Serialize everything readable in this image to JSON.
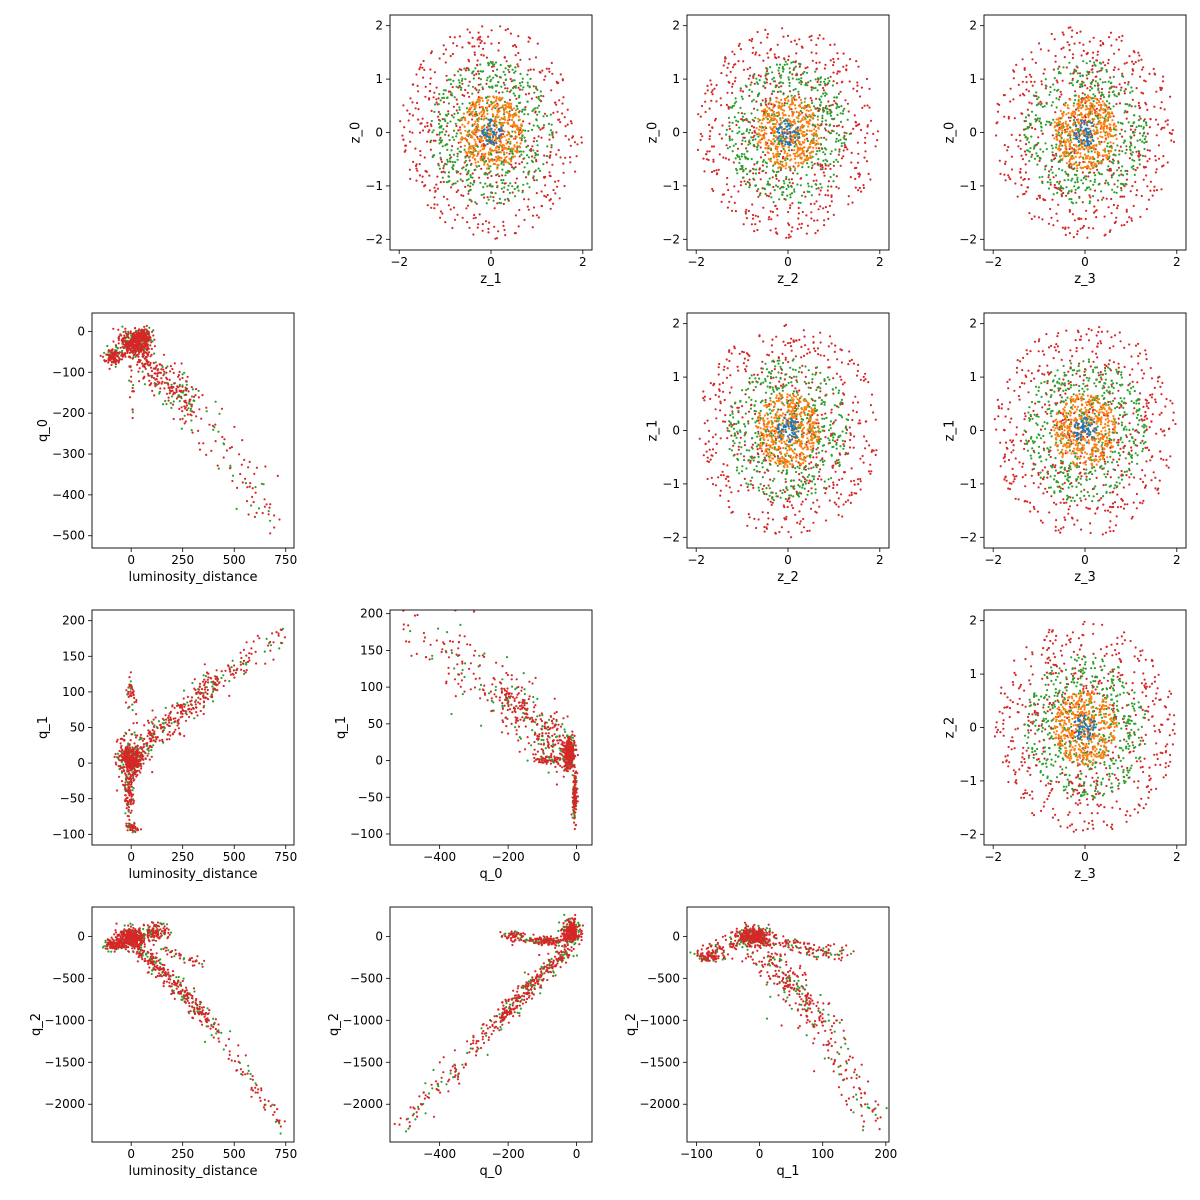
{
  "figure": {
    "kind": "scatter-matrix",
    "layout": "4x4 lower-left panels (physical params) and upper-right panels (latent z)"
  },
  "colors": {
    "series": [
      "#1f77b4",
      "#ff7f0e",
      "#2ca02c",
      "#d62728"
    ],
    "axes": "#000000"
  },
  "chart_data": [
    {
      "type": "scatter",
      "cell": [
        0,
        1
      ],
      "xlabel": "z_1",
      "ylabel": "z_0",
      "xlim": [
        -2.2,
        2.2
      ],
      "ylim": [
        -2.2,
        2.2
      ],
      "xticks": [
        -2,
        0,
        2
      ],
      "yticks": [
        -2,
        -1,
        0,
        1,
        2
      ],
      "distribution": "rings",
      "rings": [
        0.25,
        0.7,
        1.35,
        2.0
      ]
    },
    {
      "type": "scatter",
      "cell": [
        0,
        2
      ],
      "xlabel": "z_2",
      "ylabel": "z_0",
      "xlim": [
        -2.2,
        2.2
      ],
      "ylim": [
        -2.2,
        2.2
      ],
      "xticks": [
        -2,
        0,
        2
      ],
      "yticks": [
        -2,
        -1,
        0,
        1,
        2
      ],
      "distribution": "rings",
      "rings": [
        0.25,
        0.7,
        1.35,
        2.0
      ]
    },
    {
      "type": "scatter",
      "cell": [
        0,
        3
      ],
      "xlabel": "z_3",
      "ylabel": "z_0",
      "xlim": [
        -2.2,
        2.2
      ],
      "ylim": [
        -2.2,
        2.2
      ],
      "xticks": [
        -2,
        0,
        2
      ],
      "yticks": [
        -2,
        -1,
        0,
        1,
        2
      ],
      "distribution": "rings",
      "rings": [
        0.25,
        0.7,
        1.35,
        2.0
      ]
    },
    {
      "type": "scatter",
      "cell": [
        1,
        2
      ],
      "xlabel": "z_2",
      "ylabel": "z_1",
      "xlim": [
        -2.2,
        2.2
      ],
      "ylim": [
        -2.2,
        2.2
      ],
      "xticks": [
        -2,
        0,
        2
      ],
      "yticks": [
        -2,
        -1,
        0,
        1,
        2
      ],
      "distribution": "rings",
      "rings": [
        0.25,
        0.7,
        1.35,
        2.0
      ]
    },
    {
      "type": "scatter",
      "cell": [
        1,
        3
      ],
      "xlabel": "z_3",
      "ylabel": "z_1",
      "xlim": [
        -2.2,
        2.2
      ],
      "ylim": [
        -2.2,
        2.2
      ],
      "xticks": [
        -2,
        0,
        2
      ],
      "yticks": [
        -2,
        -1,
        0,
        1,
        2
      ],
      "distribution": "rings",
      "rings": [
        0.25,
        0.7,
        1.35,
        2.0
      ]
    },
    {
      "type": "scatter",
      "cell": [
        2,
        3
      ],
      "xlabel": "z_3",
      "ylabel": "z_2",
      "xlim": [
        -2.2,
        2.2
      ],
      "ylim": [
        -2.2,
        2.2
      ],
      "xticks": [
        -2,
        0,
        2
      ],
      "yticks": [
        -2,
        -1,
        0,
        1,
        2
      ],
      "distribution": "rings",
      "rings": [
        0.25,
        0.7,
        1.35,
        2.0
      ]
    },
    {
      "type": "scatter",
      "cell": [
        1,
        0
      ],
      "xlabel": "luminosity_distance",
      "ylabel": "q_0",
      "xlim": [
        -190,
        790
      ],
      "ylim": [
        -530,
        45
      ],
      "xticks": [
        0,
        250,
        500,
        750
      ],
      "yticks": [
        -500,
        -400,
        -300,
        -200,
        -100,
        0
      ],
      "distribution": "structured",
      "clusters": [
        {
          "center": [
            20,
            -30
          ],
          "spread": [
            55,
            28
          ],
          "n": 420
        },
        {
          "center": [
            -90,
            -60
          ],
          "spread": [
            35,
            15
          ],
          "n": 120
        },
        {
          "center": [
            60,
            -10
          ],
          "spread": [
            30,
            12
          ],
          "n": 120
        }
      ],
      "arms": [
        {
          "from": [
            30,
            -50
          ],
          "to": [
            310,
            -190
          ],
          "width": 15,
          "n": 260
        },
        {
          "from": [
            300,
            -180
          ],
          "to": [
            720,
            -470
          ],
          "width": 22,
          "n": 90
        },
        {
          "from": [
            0,
            -60
          ],
          "to": [
            10,
            -220
          ],
          "width": 12,
          "n": 20
        }
      ]
    },
    {
      "type": "scatter",
      "cell": [
        2,
        0
      ],
      "xlabel": "luminosity_distance",
      "ylabel": "q_1",
      "xlim": [
        -190,
        790
      ],
      "ylim": [
        -115,
        215
      ],
      "xticks": [
        0,
        250,
        500,
        750
      ],
      "yticks": [
        -100,
        -50,
        0,
        50,
        100,
        150,
        200
      ],
      "distribution": "structured",
      "clusters": [
        {
          "center": [
            0,
            5
          ],
          "spread": [
            45,
            18
          ],
          "n": 380
        },
        {
          "center": [
            -10,
            -40
          ],
          "spread": [
            20,
            25
          ],
          "n": 110
        },
        {
          "center": [
            0,
            95
          ],
          "spread": [
            15,
            20
          ],
          "n": 40
        },
        {
          "center": [
            0,
            -90
          ],
          "spread": [
            25,
            6
          ],
          "n": 40
        }
      ],
      "arms": [
        {
          "from": [
            40,
            20
          ],
          "to": [
            420,
            115
          ],
          "width": 6,
          "n": 300
        },
        {
          "from": [
            400,
            110
          ],
          "to": [
            750,
            185
          ],
          "width": 5,
          "n": 80
        },
        {
          "from": [
            -80,
            0
          ],
          "to": [
            40,
            20
          ],
          "width": 10,
          "n": 60
        }
      ]
    },
    {
      "type": "scatter",
      "cell": [
        2,
        1
      ],
      "xlabel": "q_0",
      "ylabel": "q_1",
      "xlim": [
        -545,
        45
      ],
      "ylim": [
        -115,
        205
      ],
      "xticks": [
        -400,
        -200,
        0
      ],
      "yticks": [
        -100,
        -50,
        0,
        50,
        100,
        150,
        200
      ],
      "distribution": "structured",
      "clusters": [
        {
          "center": [
            -20,
            10
          ],
          "spread": [
            15,
            18
          ],
          "n": 320
        },
        {
          "center": [
            -5,
            -50
          ],
          "spread": [
            5,
            25
          ],
          "n": 120
        },
        {
          "center": [
            -80,
            0
          ],
          "spread": [
            40,
            5
          ],
          "n": 60
        }
      ],
      "arms": [
        {
          "from": [
            -30,
            15
          ],
          "to": [
            -220,
            90
          ],
          "width": 10,
          "n": 300
        },
        {
          "from": [
            -200,
            80
          ],
          "to": [
            -380,
            140
          ],
          "width": 12,
          "n": 90
        },
        {
          "from": [
            -380,
            140
          ],
          "to": [
            -510,
            185
          ],
          "width": 10,
          "n": 30
        }
      ]
    },
    {
      "type": "scatter",
      "cell": [
        3,
        0
      ],
      "xlabel": "luminosity_distance",
      "ylabel": "q_2",
      "xlim": [
        -190,
        790
      ],
      "ylim": [
        -2450,
        350
      ],
      "xticks": [
        0,
        250,
        500,
        750
      ],
      "yticks": [
        -2000,
        -1500,
        -1000,
        -500,
        0
      ],
      "distribution": "structured",
      "clusters": [
        {
          "center": [
            0,
            -20
          ],
          "spread": [
            55,
            90
          ],
          "n": 420
        },
        {
          "center": [
            -80,
            -100
          ],
          "spread": [
            40,
            60
          ],
          "n": 120
        },
        {
          "center": [
            120,
            50
          ],
          "spread": [
            60,
            90
          ],
          "n": 120
        }
      ],
      "arms": [
        {
          "from": [
            20,
            -100
          ],
          "to": [
            360,
            -950
          ],
          "width": 28,
          "n": 300
        },
        {
          "from": [
            360,
            -950
          ],
          "to": [
            740,
            -2300
          ],
          "width": 30,
          "n": 90
        },
        {
          "from": [
            150,
            -150
          ],
          "to": [
            340,
            -320
          ],
          "width": 20,
          "n": 40
        }
      ]
    },
    {
      "type": "scatter",
      "cell": [
        3,
        1
      ],
      "xlabel": "q_0",
      "ylabel": "q_2",
      "xlim": [
        -545,
        45
      ],
      "ylim": [
        -2450,
        350
      ],
      "xticks": [
        -400,
        -200,
        0
      ],
      "yticks": [
        -2000,
        -1500,
        -1000,
        -500,
        0
      ],
      "distribution": "structured",
      "clusters": [
        {
          "center": [
            -15,
            50
          ],
          "spread": [
            20,
            120
          ],
          "n": 300
        },
        {
          "center": [
            -90,
            -50
          ],
          "spread": [
            45,
            40
          ],
          "n": 140
        },
        {
          "center": [
            -180,
            0
          ],
          "spread": [
            40,
            60
          ],
          "n": 60
        }
      ],
      "arms": [
        {
          "from": [
            -30,
            -150
          ],
          "to": [
            -240,
            -1050
          ],
          "width": 25,
          "n": 320
        },
        {
          "from": [
            -240,
            -1050
          ],
          "to": [
            -500,
            -2250
          ],
          "width": 30,
          "n": 120
        }
      ]
    },
    {
      "type": "scatter",
      "cell": [
        3,
        2
      ],
      "xlabel": "q_1",
      "ylabel": "q_2",
      "xlim": [
        -115,
        205
      ],
      "ylim": [
        -2450,
        350
      ],
      "xticks": [
        -100,
        0,
        100,
        200
      ],
      "yticks": [
        -2000,
        -1500,
        -1000,
        -500,
        0
      ],
      "distribution": "structured",
      "clusters": [
        {
          "center": [
            -10,
            0
          ],
          "spread": [
            20,
            90
          ],
          "n": 360
        },
        {
          "center": [
            -80,
            -250
          ],
          "spread": [
            15,
            40
          ],
          "n": 60
        }
      ],
      "arms": [
        {
          "from": [
            -20,
            0
          ],
          "to": [
            -95,
            -260
          ],
          "width": 22,
          "n": 110
        },
        {
          "from": [
            0,
            -20
          ],
          "to": [
            130,
            -230
          ],
          "width": 22,
          "n": 130
        },
        {
          "from": [
            10,
            -200
          ],
          "to": [
            100,
            -1050
          ],
          "width": 30,
          "n": 240
        },
        {
          "from": [
            100,
            -1050
          ],
          "to": [
            185,
            -2300
          ],
          "width": 30,
          "n": 100
        }
      ]
    }
  ]
}
